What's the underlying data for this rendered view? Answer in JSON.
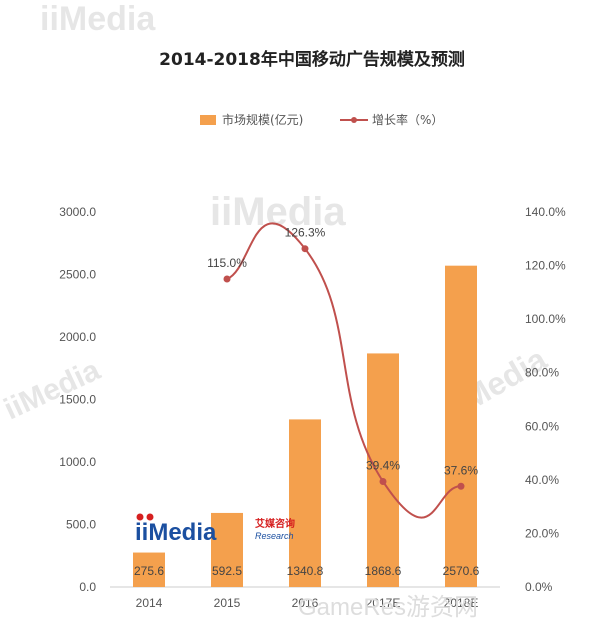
{
  "chart_data": {
    "type": "bar",
    "title": "2014-2018年中国移动广告规模及预测",
    "categories": [
      "2014",
      "2015",
      "2016",
      "2017E",
      "2018E"
    ],
    "series": [
      {
        "name": "市场规模(亿元)",
        "type": "bar",
        "axis": "left",
        "values": [
          275.6,
          592.5,
          1340.8,
          1868.6,
          2570.6
        ],
        "labels": [
          "275.6",
          "592.5",
          "1340.8",
          "1868.6",
          "2570.6"
        ],
        "color": "#f4a04d"
      },
      {
        "name": "增长率（%）",
        "type": "line",
        "axis": "right",
        "values": [
          null,
          115.0,
          126.3,
          39.4,
          37.6
        ],
        "labels": [
          "",
          "115.0%",
          "126.3%",
          "39.4%",
          "37.6%"
        ],
        "color": "#c0504d"
      }
    ],
    "ylim_left": [
      0,
      3000
    ],
    "ylim_right": [
      0,
      140
    ],
    "yticks_left": [
      "0.0",
      "500.0",
      "1000.0",
      "1500.0",
      "2000.0",
      "2500.0",
      "3000.0"
    ],
    "yticks_right": [
      "0.0%",
      "20.0%",
      "40.0%",
      "60.0%",
      "80.0%",
      "100.0%",
      "120.0%",
      "140.0%"
    ],
    "grid": false,
    "legend": "top-center"
  },
  "branding": {
    "logo_text": "iiMedia",
    "logo_cn": "艾媒咨询",
    "logo_en": "Research",
    "watermark_text": "iiMedia",
    "site_text": "GameRes游资网"
  }
}
